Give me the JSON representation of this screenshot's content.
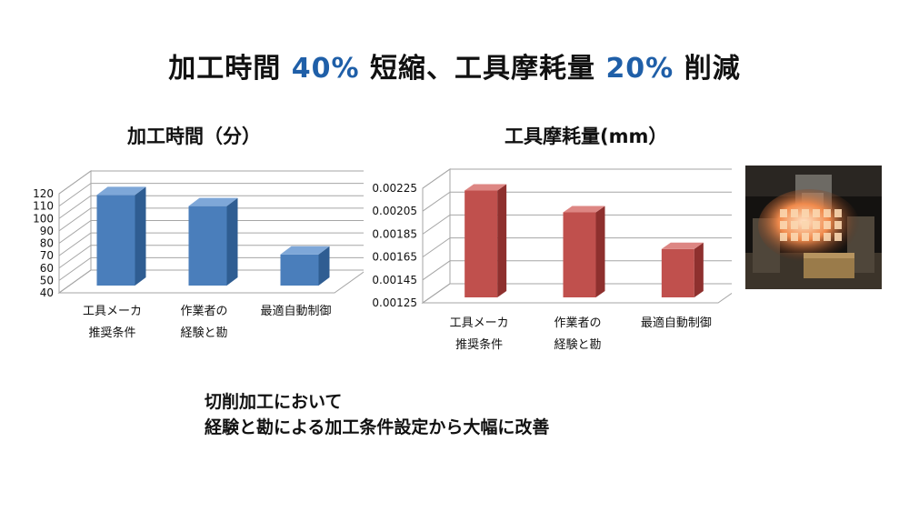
{
  "headline": {
    "part1": "加工時間 ",
    "value1": "40%",
    "part2": " 短縮、工具摩耗量 ",
    "value2": "20%",
    "part3": " 削減"
  },
  "colors": {
    "accent": "#1f5fa8",
    "blue_bar": "#4a7ebb",
    "red_bar": "#c0504d"
  },
  "chart_data": [
    {
      "type": "bar",
      "title": "加工時間（分）",
      "categories": [
        [
          "工具メーカ",
          "推奨条件"
        ],
        [
          "作業者の",
          "経験と勘"
        ],
        [
          "最適自動制御"
        ]
      ],
      "values": [
        119,
        110,
        71
      ],
      "ylim": [
        40,
        120
      ],
      "yticks": [
        "40",
        "50",
        "60",
        "70",
        "80",
        "90",
        "100",
        "110",
        "120"
      ],
      "grid": true,
      "color": "blue"
    },
    {
      "type": "bar",
      "title": "工具摩耗量(mm）",
      "categories": [
        [
          "工具メーカ",
          "推奨条件"
        ],
        [
          "作業者の",
          "経験と勘"
        ],
        [
          "最適自動制御"
        ]
      ],
      "values": [
        0.00223,
        0.00204,
        0.00172
      ],
      "ylim": [
        0.00125,
        0.00225
      ],
      "yticks": [
        "0.00125",
        "0.00145",
        "0.00165",
        "0.00185",
        "0.00205",
        "0.00225"
      ],
      "grid": true,
      "color": "red"
    }
  ],
  "photo": {
    "icon": "machined-part-photo"
  },
  "footer": {
    "line1": "切削加工において",
    "line2": "経験と勘による加工条件設定から大幅に改善"
  }
}
